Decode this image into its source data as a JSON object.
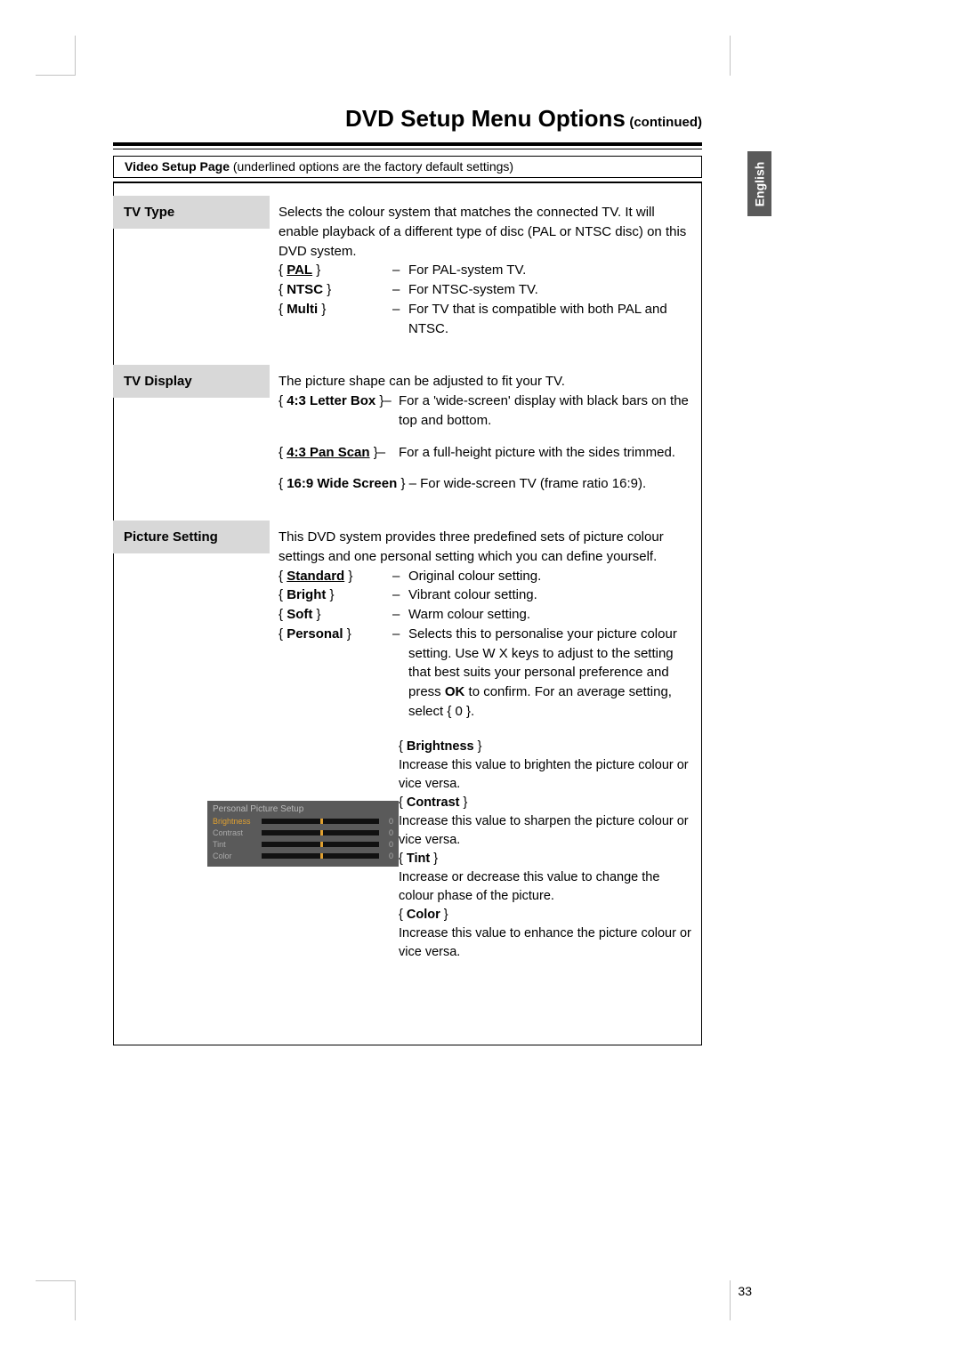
{
  "page": {
    "title_main": "DVD Setup Menu Options",
    "title_cont": "(continued)",
    "lang": "English",
    "page_number": "33",
    "section_title": "Video Setup Page",
    "section_note": "(underlined options are the factory default settings)"
  },
  "tv_type": {
    "label": "TV Type",
    "intro": "Selects the colour system that matches the connected TV.  It will enable playback of a different type of disc (PAL or NTSC disc) on this DVD system.",
    "opts": [
      {
        "key": "PAL",
        "underline": true,
        "desc": "For PAL-system TV."
      },
      {
        "key": "NTSC",
        "underline": false,
        "desc": "For NTSC-system TV."
      },
      {
        "key": "Multi",
        "underline": false,
        "desc": "For TV that is compatible with both PAL and NTSC."
      }
    ]
  },
  "tv_display": {
    "label": "TV Display",
    "intro": "The picture shape can be adjusted to fit your TV.",
    "opts": [
      {
        "key": "4:3 Letter Box",
        "underline": false,
        "desc": "For a 'wide-screen' display with black bars on the top and bottom."
      },
      {
        "key": "4:3 Pan Scan",
        "underline": true,
        "desc": "For a full-height picture with the sides trimmed."
      },
      {
        "key": "16:9 Wide Screen",
        "underline": false,
        "desc": "For wide-screen TV (frame ratio 16:9)."
      }
    ]
  },
  "picture": {
    "label": "Picture Setting",
    "intro": "This DVD system provides three predefined sets of picture colour settings and one personal setting which you can define yourself.",
    "opts": [
      {
        "key": "Standard",
        "underline": true,
        "desc": "Original colour setting."
      },
      {
        "key": "Bright",
        "underline": false,
        "desc": "Vibrant colour setting."
      },
      {
        "key": "Soft",
        "underline": false,
        "desc": "Warm colour setting."
      },
      {
        "key": "Personal",
        "underline": false,
        "desc_pre": "Selects this to personalise your picture colour setting.  Use  W X keys to adjust to the setting that best suits your personal preference and press ",
        "desc_ok": "OK",
        "desc_post": " to confirm.  For an average setting, select { 0 }."
      }
    ],
    "subs": [
      {
        "name": "Brightness",
        "text": "Increase this value to brighten the picture colour or vice versa."
      },
      {
        "name": "Contrast",
        "text": "Increase this value to sharpen the picture colour or vice versa."
      },
      {
        "name": "Tint",
        "text": "Increase or decrease this value to change the colour phase of the picture."
      },
      {
        "name": "Color",
        "text": "Increase this value to enhance the picture colour or vice versa."
      }
    ],
    "slider": {
      "title": "Personal Picture Setup",
      "rows": [
        {
          "name": "Brightness",
          "hl": true,
          "val": "0"
        },
        {
          "name": "Contrast",
          "hl": false,
          "val": "0"
        },
        {
          "name": "Tint",
          "hl": false,
          "val": "0"
        },
        {
          "name": "Color",
          "hl": false,
          "val": "0"
        }
      ]
    }
  }
}
